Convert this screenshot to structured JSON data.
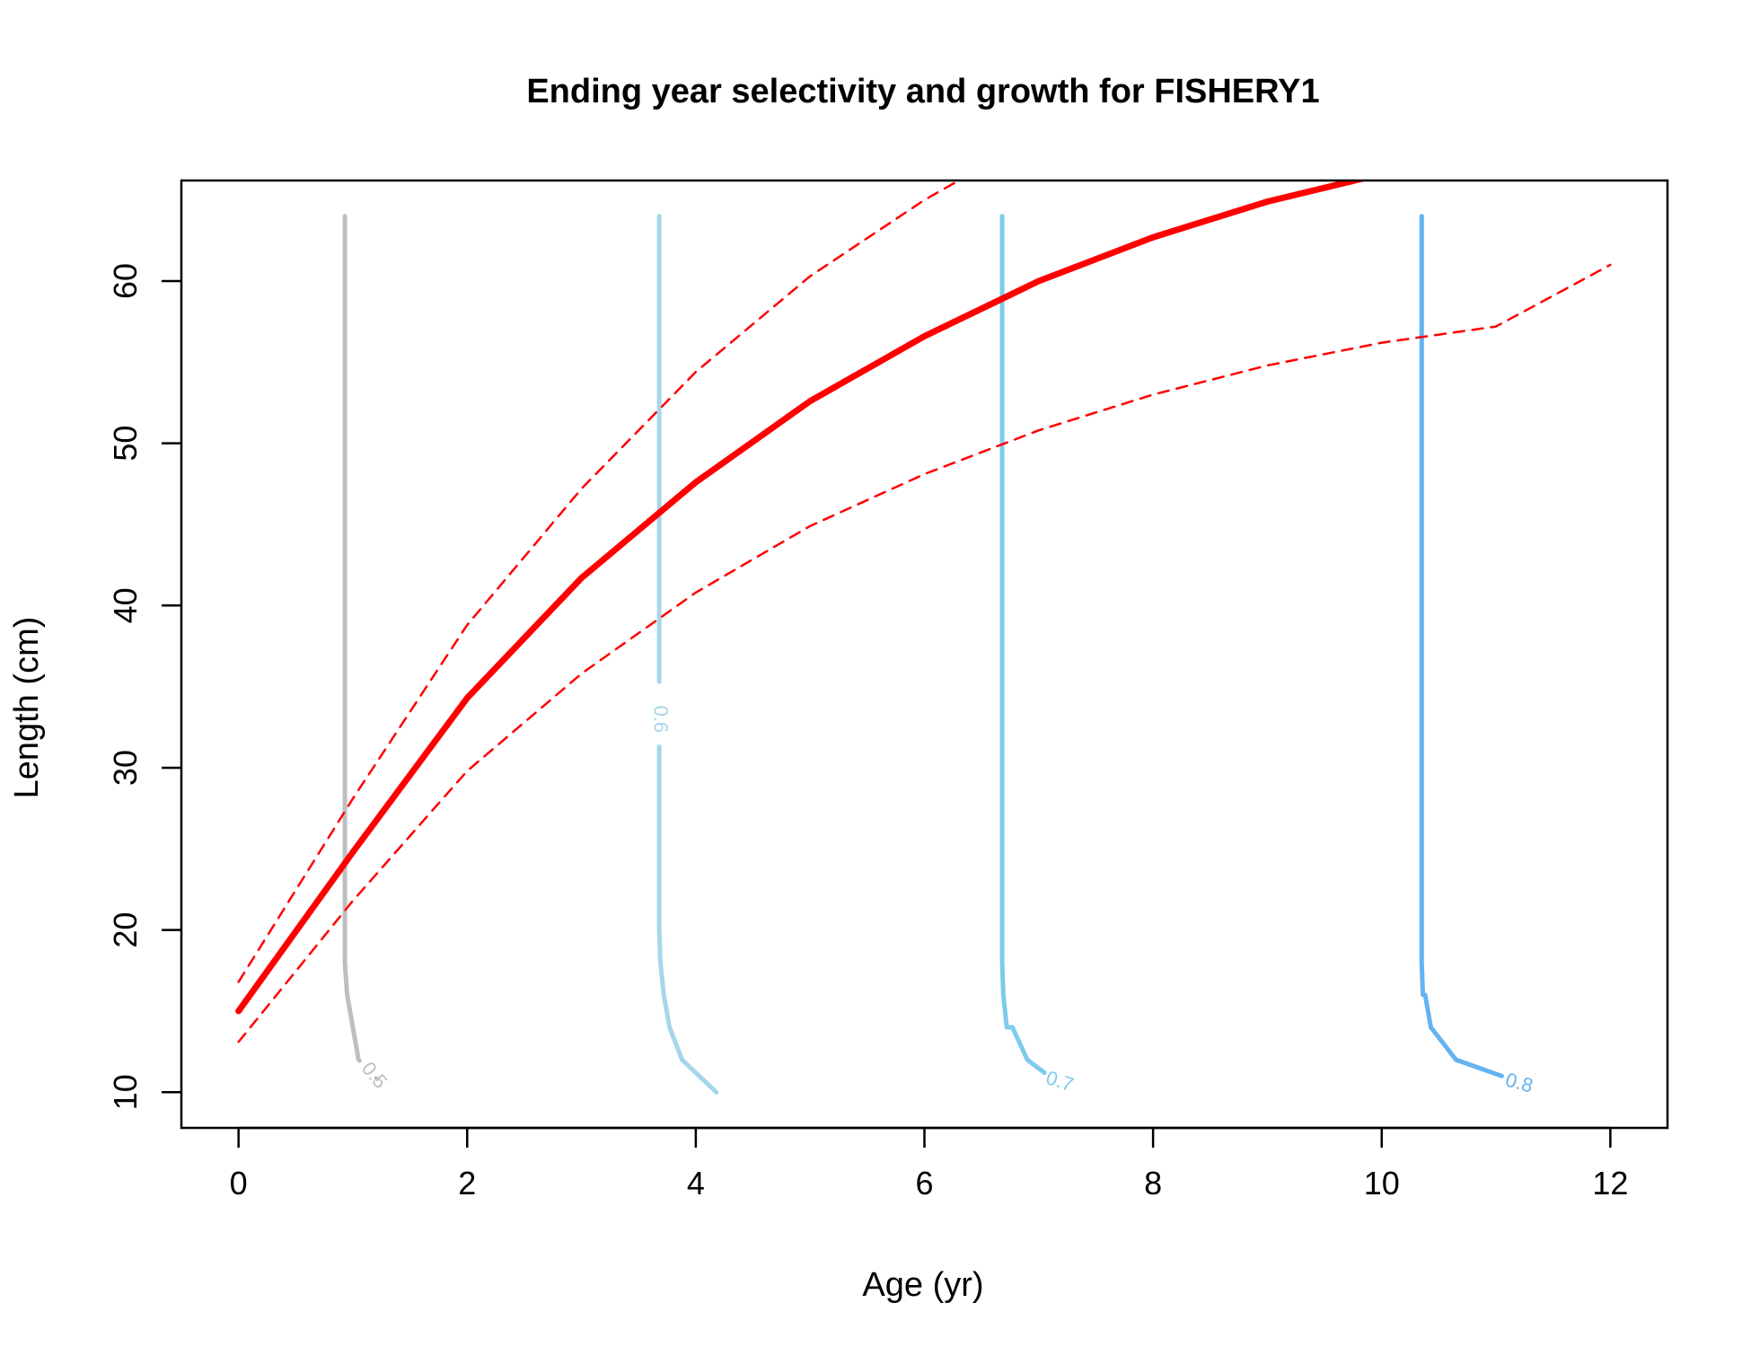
{
  "chart_data": {
    "type": "line",
    "title": "Ending year selectivity and growth for FISHERY1",
    "xlabel": "Age (yr)",
    "ylabel": "Length (cm)",
    "xlim": [
      -0.5,
      12.5
    ],
    "ylim": [
      7.8,
      66.2
    ],
    "xticks": [
      0,
      2,
      4,
      6,
      8,
      10,
      12
    ],
    "yticks": [
      10,
      20,
      30,
      40,
      50,
      60
    ],
    "grid": false,
    "legend": "none",
    "series": [
      {
        "role": "mean growth",
        "color": "#ff0000",
        "style": "solid-thick",
        "x": [
          0,
          1,
          2,
          3,
          4,
          5,
          6,
          7,
          8,
          9,
          10
        ],
        "y": [
          15.0,
          24.8,
          34.3,
          41.7,
          47.6,
          52.6,
          56.6,
          60.0,
          62.7,
          64.9,
          66.6
        ]
      },
      {
        "role": "upper interval",
        "color": "#ff0000",
        "style": "dashed",
        "x": [
          0,
          1,
          2,
          3,
          4,
          5,
          6,
          6.5
        ],
        "y": [
          16.8,
          28.1,
          38.8,
          47.2,
          54.4,
          60.3,
          65.0,
          67.0
        ]
      },
      {
        "role": "lower interval",
        "color": "#ff0000",
        "style": "dashed",
        "x": [
          0,
          1,
          2,
          3,
          4,
          5,
          6,
          7,
          8,
          9,
          10,
          11,
          12
        ],
        "y": [
          13.1,
          21.8,
          29.8,
          35.8,
          40.8,
          44.9,
          48.1,
          50.8,
          53.0,
          54.8,
          56.2,
          57.2,
          61.0
        ]
      }
    ],
    "contours": [
      {
        "level": "0.5",
        "color": "#bebebe",
        "x": [
          0.93,
          0.93,
          0.93,
          0.93,
          0.95,
          1.0,
          1.05
        ],
        "y": [
          64,
          30,
          20,
          18,
          16,
          14,
          12
        ],
        "label_at": [
          1.18,
          11.0
        ],
        "label_angle": 50,
        "tail": [
          [
            1.05,
            12
          ],
          [
            1.32,
            10.0
          ]
        ]
      },
      {
        "level": "0.6",
        "color": "#a6d6ea",
        "x": [
          3.68,
          3.68,
          3.68,
          3.68,
          3.69,
          3.72,
          3.77,
          3.88,
          4.18
        ],
        "y": [
          64,
          35.5,
          31,
          20,
          18,
          16,
          14,
          12,
          10
        ],
        "label_at": [
          3.68,
          33.0
        ],
        "label_angle": 90,
        "gap": [
          35.3,
          31.3
        ]
      },
      {
        "level": "0.7",
        "color": "#7ecbeb",
        "x": [
          6.68,
          6.68,
          6.68,
          6.69,
          6.72,
          6.77,
          6.9,
          7.05
        ],
        "y": [
          64,
          20,
          18,
          16,
          14,
          14,
          12,
          11.2
        ],
        "label_at": [
          7.18,
          10.6
        ],
        "label_angle": 18
      },
      {
        "level": "0.8",
        "color": "#64b3f0",
        "x": [
          10.35,
          10.35,
          10.35,
          10.36,
          10.38,
          10.43,
          10.65,
          11.05
        ],
        "y": [
          64,
          22,
          18,
          16,
          16,
          14,
          12,
          11.0
        ],
        "label_at": [
          11.2,
          10.5
        ],
        "label_angle": 15
      }
    ]
  }
}
